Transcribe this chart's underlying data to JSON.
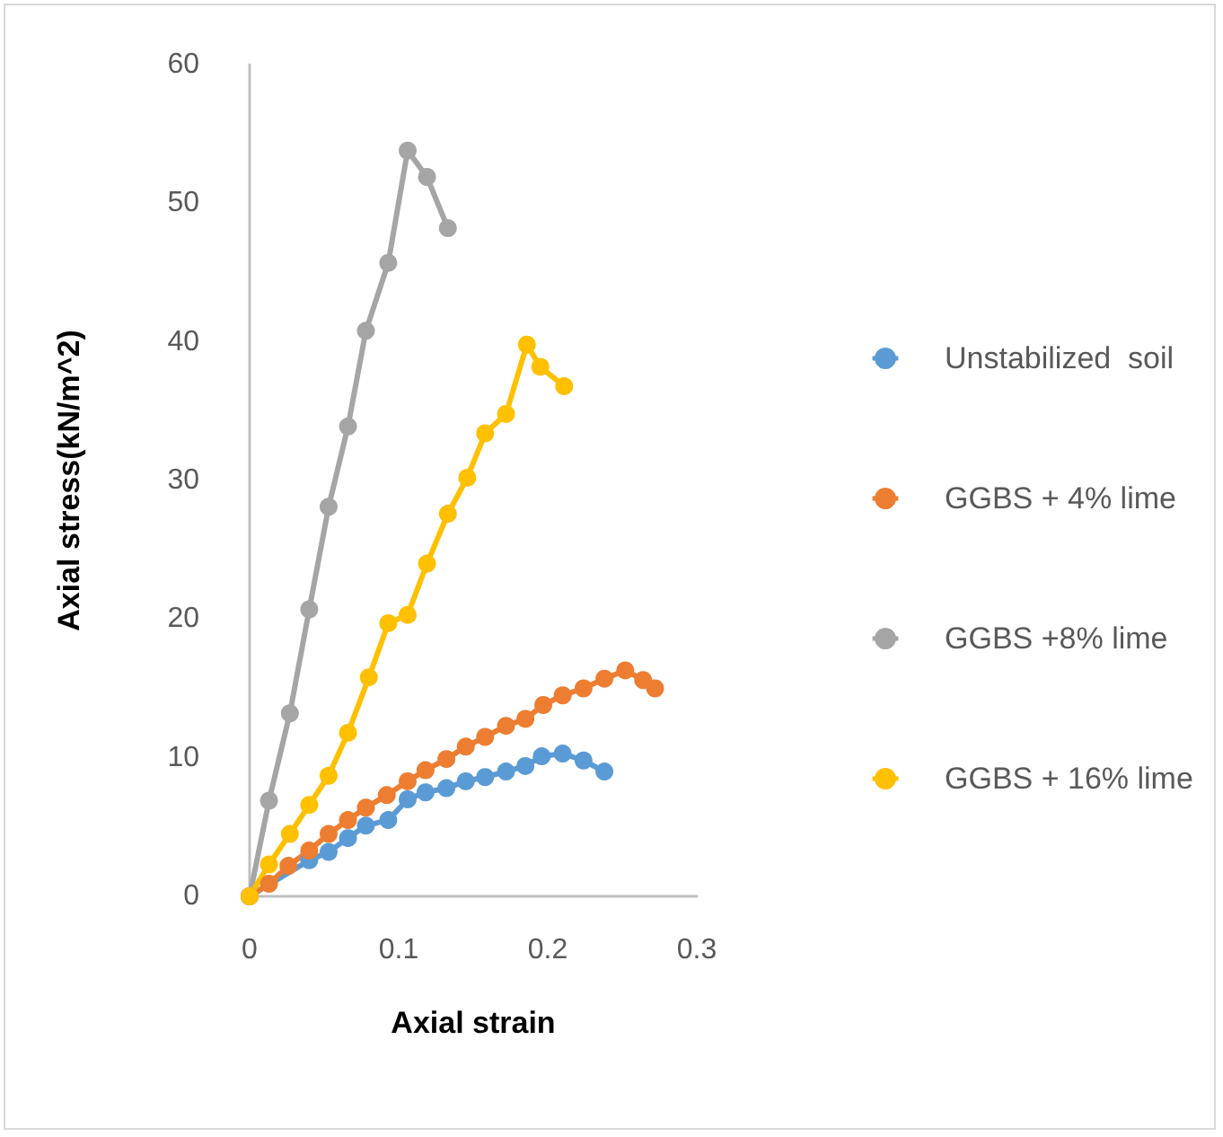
{
  "chart_data": {
    "type": "line",
    "xlabel": "Axial strain",
    "ylabel": "Axial stress(kN/m^2)",
    "xlim": [
      0,
      0.3
    ],
    "xticks": [
      0,
      0.1,
      0.2,
      0.3
    ],
    "ylim": [
      0,
      60
    ],
    "yticks": [
      0,
      10,
      20,
      30,
      40,
      50,
      60
    ],
    "grid": false,
    "legend": "right",
    "marker": "circle",
    "line_style": "solid",
    "series": [
      {
        "name": "Unstabilized  soil",
        "color": "#5b9bd5",
        "x": [
          0,
          0.04,
          0.053,
          0.066,
          0.078,
          0.093,
          0.106,
          0.118,
          0.132,
          0.145,
          0.158,
          0.172,
          0.185,
          0.196,
          0.21,
          0.224,
          0.238
        ],
        "values": [
          0,
          2.6,
          3.2,
          4.2,
          5.1,
          5.5,
          7.0,
          7.5,
          7.8,
          8.3,
          8.6,
          9.0,
          9.4,
          10.1,
          10.3,
          9.8,
          9.0
        ]
      },
      {
        "name": "GGBS + 4% lime",
        "color": "#ed7d31",
        "x": [
          0,
          0.013,
          0.026,
          0.04,
          0.053,
          0.066,
          0.078,
          0.092,
          0.106,
          0.118,
          0.132,
          0.145,
          0.158,
          0.172,
          0.185,
          0.197,
          0.21,
          0.224,
          0.238,
          0.252,
          0.264,
          0.272
        ],
        "values": [
          0,
          0.9,
          2.2,
          3.3,
          4.5,
          5.5,
          6.4,
          7.3,
          8.3,
          9.1,
          9.9,
          10.8,
          11.5,
          12.3,
          12.8,
          13.8,
          14.5,
          15.0,
          15.7,
          16.3,
          15.6,
          15.0
        ]
      },
      {
        "name": "GGBS +8% lime",
        "color": "#a5a5a5",
        "x": [
          0,
          0.013,
          0.027,
          0.04,
          0.053,
          0.066,
          0.078,
          0.093,
          0.106,
          0.119,
          0.133
        ],
        "values": [
          0,
          6.9,
          13.2,
          20.7,
          28.1,
          33.9,
          40.8,
          45.7,
          53.8,
          51.9,
          48.2
        ]
      },
      {
        "name": "GGBS + 16% lime",
        "color": "#ffc000",
        "x": [
          0,
          0.013,
          0.027,
          0.04,
          0.053,
          0.066,
          0.08,
          0.093,
          0.106,
          0.119,
          0.133,
          0.146,
          0.158,
          0.172,
          0.186,
          0.195,
          0.211
        ],
        "values": [
          0,
          2.3,
          4.5,
          6.6,
          8.7,
          11.8,
          15.8,
          19.7,
          20.3,
          24.0,
          27.6,
          30.2,
          33.4,
          34.8,
          39.8,
          38.2,
          36.8
        ]
      }
    ]
  }
}
